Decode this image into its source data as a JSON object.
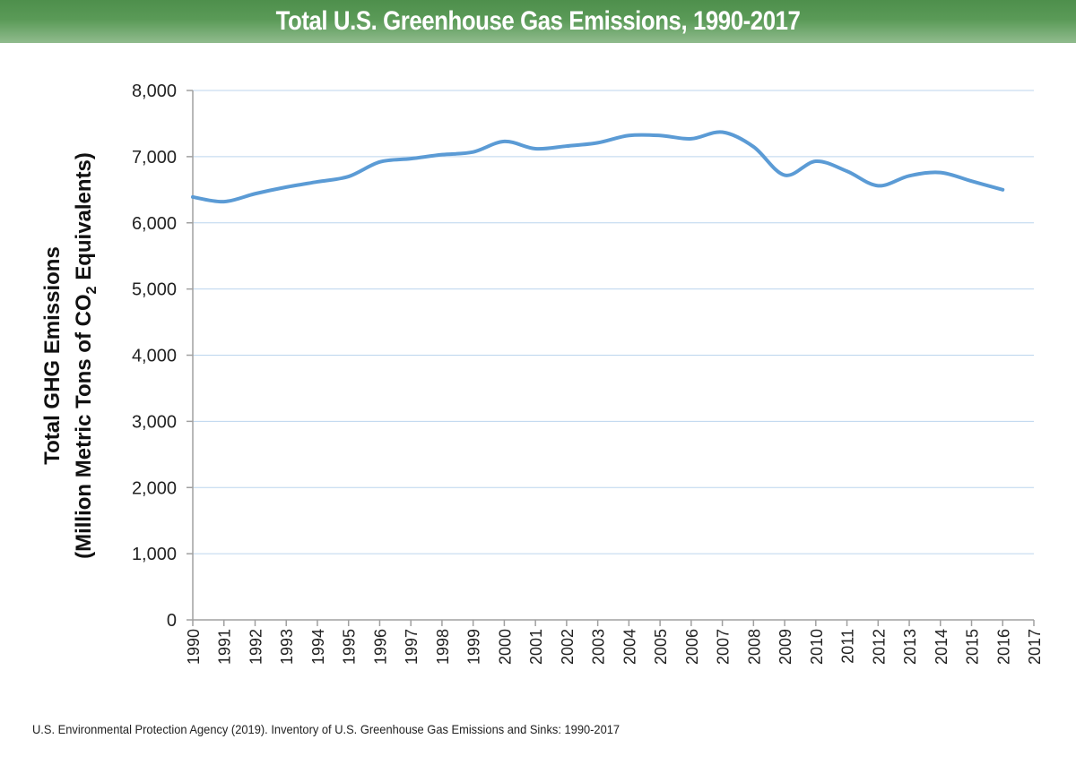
{
  "header": {
    "title": "Total U.S. Greenhouse Gas Emissions, 1990-2017"
  },
  "footer": {
    "source": "U.S. Environmental Protection Agency (2019). Inventory of U.S. Greenhouse Gas Emissions and Sinks: 1990-2017"
  },
  "colors": {
    "header_green": "#4e8f4c",
    "line": "#5b9bd5",
    "gridline": "#bcd5ee",
    "axis": "#a0a0a0"
  },
  "chart_data": {
    "type": "line",
    "title": "Total U.S. Greenhouse Gas Emissions, 1990-2017",
    "xlabel": "",
    "ylabel_line1": "Total GHG  Emissions",
    "ylabel_line2_prefix": "(Million Metric Tons of CO",
    "ylabel_line2_sub": "2",
    "ylabel_line2_suffix": " Equivalents)",
    "ylim": [
      0,
      8000
    ],
    "xlim": [
      1990,
      2017
    ],
    "grid": "horizontal",
    "legend": "none",
    "yticks": [
      0,
      1000,
      2000,
      3000,
      4000,
      5000,
      6000,
      7000,
      8000
    ],
    "ytick_labels": [
      "0",
      "1,000",
      "2,000",
      "3,000",
      "4,000",
      "5,000",
      "6,000",
      "7,000",
      "8,000"
    ],
    "xtick_labels": [
      "1990",
      "1991",
      "1992",
      "1993",
      "1994",
      "1995",
      "1996",
      "1997",
      "1998",
      "1999",
      "2000",
      "2001",
      "2002",
      "2003",
      "2004",
      "2005",
      "2006",
      "2007",
      "2008",
      "2009",
      "2010",
      "2011",
      "2012",
      "2013",
      "2014",
      "2015",
      "2016",
      "2017"
    ],
    "series": [
      {
        "name": "Total GHG Emissions",
        "x": [
          1990,
          1991,
          1992,
          1993,
          1994,
          1995,
          1996,
          1997,
          1998,
          1999,
          2000,
          2001,
          2002,
          2003,
          2004,
          2005,
          2006,
          2007,
          2008,
          2009,
          2010,
          2011,
          2012,
          2013,
          2014,
          2015,
          2016
        ],
        "values": [
          6390,
          6320,
          6440,
          6540,
          6620,
          6700,
          6920,
          6970,
          7030,
          7070,
          7230,
          7120,
          7160,
          7210,
          7320,
          7320,
          7270,
          7370,
          7150,
          6720,
          6930,
          6780,
          6560,
          6710,
          6760,
          6630,
          6500
        ]
      }
    ]
  }
}
